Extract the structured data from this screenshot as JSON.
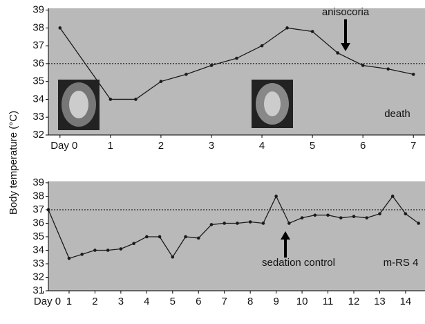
{
  "chart_data": [
    {
      "type": "line",
      "ylabel": "Body temperature (°C)",
      "x": [
        0,
        1,
        1.5,
        2,
        2.5,
        3,
        3.5,
        4,
        4.5,
        5,
        5.5,
        6,
        6.5,
        7
      ],
      "values": [
        38,
        34,
        34,
        35,
        35.4,
        35.9,
        36.3,
        37,
        38,
        37.8,
        36.6,
        35.9,
        35.7,
        35.4
      ],
      "color": "#1a1a1a",
      "reference_line": 36,
      "xlim": [
        -0.23,
        7.23
      ],
      "ylim": [
        32,
        39.1
      ],
      "xticks": [
        {
          "value": 0,
          "label": "Day 0"
        },
        1,
        2,
        3,
        4,
        5,
        6,
        7
      ],
      "yticks": [
        32,
        33,
        34,
        35,
        36,
        37,
        38,
        39
      ],
      "annotations": [
        "anisocoria",
        "death"
      ]
    },
    {
      "type": "line",
      "x": [
        0.2,
        1,
        1.5,
        2,
        2.5,
        3,
        3.5,
        4,
        4.5,
        5,
        5.5,
        6,
        6.5,
        7,
        7.5,
        8,
        8.5,
        9,
        9.5,
        10,
        10.5,
        11,
        11.5,
        12,
        12.5,
        13,
        13.5,
        14,
        14.5
      ],
      "values": [
        37,
        33.4,
        33.7,
        34,
        34,
        34.1,
        34.5,
        35,
        35,
        33.5,
        35,
        34.9,
        35.9,
        36,
        36,
        36.1,
        36,
        38,
        36,
        36.4,
        36.6,
        36.6,
        36.4,
        36.5,
        36.4,
        36.7,
        38,
        36.7,
        36
      ],
      "color": "#1a1a1a",
      "reference_line": 37,
      "xlim": [
        0.2,
        14.75
      ],
      "ylim": [
        31,
        39.1
      ],
      "xticks": [
        {
          "value": 0,
          "label": "Day 0"
        },
        1,
        2,
        3,
        4,
        5,
        6,
        7,
        8,
        9,
        10,
        11,
        12,
        13,
        14
      ],
      "yticks": [
        31,
        32,
        33,
        34,
        35,
        36,
        37,
        38,
        39
      ],
      "annotations": [
        "sedation control",
        "m-RS 4"
      ]
    }
  ]
}
